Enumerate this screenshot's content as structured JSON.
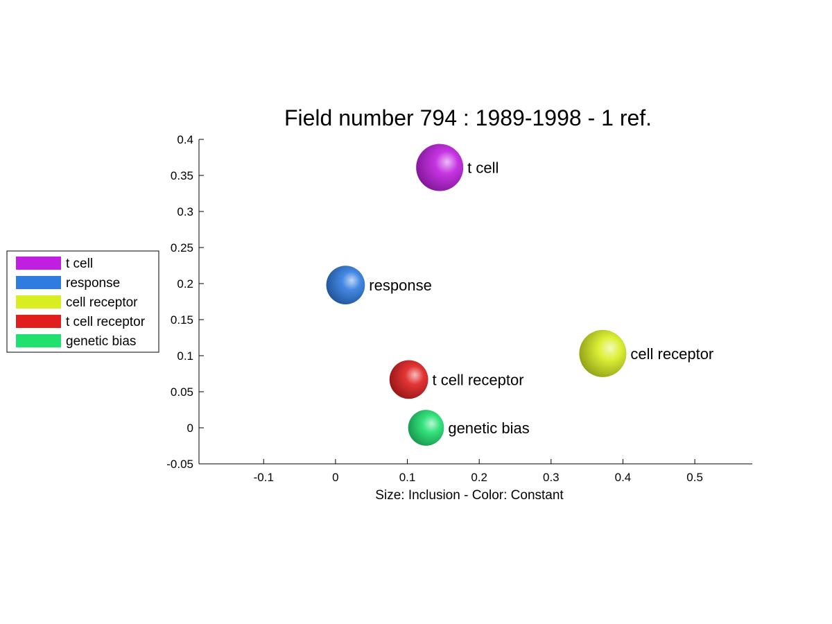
{
  "chart_data": {
    "type": "scatter",
    "title": "Field number 794 : 1989-1998  - 1 ref.",
    "xlabel": "Size: Inclusion - Color: Constant",
    "ylabel": "",
    "xlim": [
      -0.19,
      0.58
    ],
    "ylim": [
      -0.05,
      0.4
    ],
    "xticks": [
      -0.1,
      0,
      0.1,
      0.2,
      0.3,
      0.4,
      0.5
    ],
    "xtick_labels": [
      "-0.1",
      "0",
      "0.1",
      "0.2",
      "0.3",
      "0.4",
      "0.5"
    ],
    "yticks": [
      -0.05,
      0,
      0.05,
      0.1,
      0.15,
      0.2,
      0.25,
      0.3,
      0.35,
      0.4
    ],
    "ytick_labels": [
      "-0.05",
      "0",
      "0.05",
      "0.1",
      "0.15",
      "0.2",
      "0.25",
      "0.3",
      "0.35",
      "0.4"
    ],
    "grid": false,
    "legend_position": "left",
    "points": [
      {
        "label": "t cell",
        "x": 0.145,
        "y": 0.361,
        "size": 1.0,
        "color": "#c01ee0"
      },
      {
        "label": "response",
        "x": 0.014,
        "y": 0.198,
        "size": 0.82,
        "color": "#2f7be0"
      },
      {
        "label": "cell receptor",
        "x": 0.372,
        "y": 0.103,
        "size": 1.0,
        "color": "#d8ee20"
      },
      {
        "label": "t cell receptor",
        "x": 0.102,
        "y": 0.067,
        "size": 0.82,
        "color": "#e01e1e"
      },
      {
        "label": "genetic bias",
        "x": 0.126,
        "y": 0.0,
        "size": 0.76,
        "color": "#20e070"
      }
    ],
    "legend": [
      {
        "label": "t cell",
        "color": "#c01ee0"
      },
      {
        "label": "response",
        "color": "#2f7be0"
      },
      {
        "label": "cell receptor",
        "color": "#d8ee20"
      },
      {
        "label": "t cell receptor",
        "color": "#e01e1e"
      },
      {
        "label": "genetic bias",
        "color": "#20e070"
      }
    ]
  }
}
